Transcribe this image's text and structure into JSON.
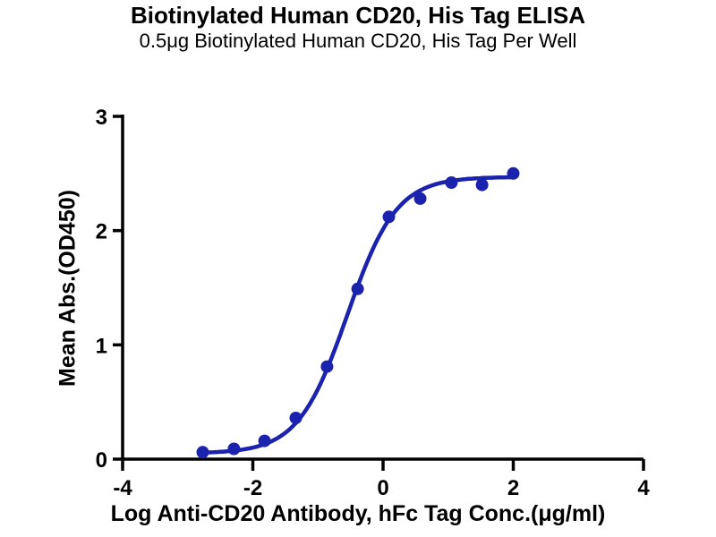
{
  "chart_data": {
    "type": "scatter",
    "title": "Biotinylated Human CD20, His Tag ELISA",
    "subtitle": "0.5μg Biotinylated Human CD20, His Tag Per Well",
    "xlabel": "Log Anti-CD20 Antibody, hFc Tag Conc.(μg/ml)",
    "ylabel": "Mean Abs.(OD450)",
    "xlim": [
      -4,
      4
    ],
    "ylim": [
      0,
      3
    ],
    "x_ticks": [
      "-4",
      "-2",
      "0",
      "2",
      "4"
    ],
    "y_ticks": [
      "0",
      "1",
      "2",
      "3"
    ],
    "grid": false,
    "legend": null,
    "axis_color": "#000000",
    "series": [
      {
        "marker": "circle",
        "color": "#1b23ae",
        "x": [
          -2.77,
          -2.29,
          -1.82,
          -1.34,
          -0.86,
          -0.39,
          0.09,
          0.57,
          1.05,
          1.52,
          2.0
        ],
        "y": [
          0.06,
          0.09,
          0.16,
          0.36,
          0.81,
          1.49,
          2.12,
          2.28,
          2.42,
          2.4,
          2.5
        ]
      }
    ],
    "fit_curve": {
      "model": "4PL",
      "bottom": 0.05,
      "top": 2.47,
      "logEC50": -0.55,
      "hill": 1.15
    }
  }
}
